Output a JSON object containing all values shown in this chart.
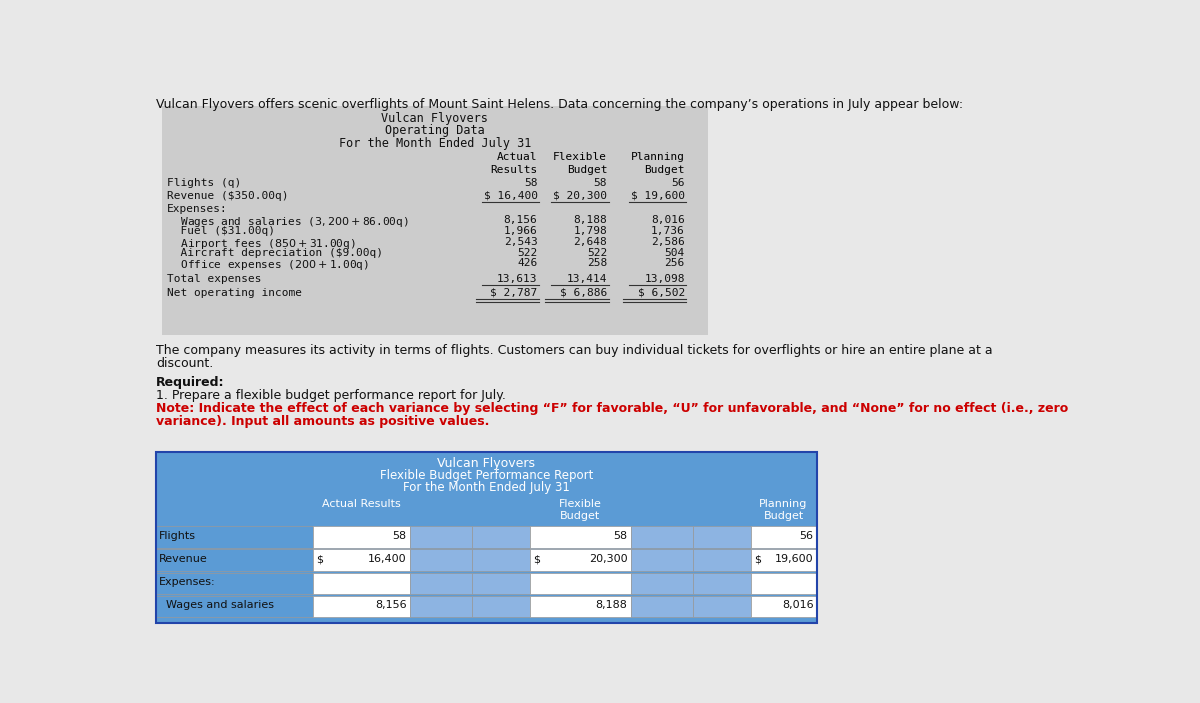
{
  "bg_color": "#e8e8e8",
  "intro_text": "Vulcan Flyovers offers scenic overflights of Mount Saint Helens. Data concerning the company’s operations in July appear below:",
  "top_table": {
    "title1": "Vulcan Flyovers",
    "title2": "Operating Data",
    "title3": "For the Month Ended July 31",
    "rows": [
      {
        "label": "Flights (q)",
        "indent": 0,
        "values": [
          "58",
          "58",
          "56"
        ],
        "double_under": false,
        "under": false
      },
      {
        "label": "Revenue ($350.00q)",
        "indent": 0,
        "values": [
          "$ 16,400",
          "$ 20,300",
          "$ 19,600"
        ],
        "double_under": false,
        "under": true
      },
      {
        "label": "Expenses:",
        "indent": 0,
        "values": [
          "",
          "",
          ""
        ],
        "double_under": false,
        "under": false
      },
      {
        "label": "  Wages and salaries ($3,200 + $86.00q)",
        "indent": 1,
        "values": [
          "8,156",
          "8,188",
          "8,016"
        ],
        "double_under": false,
        "under": false
      },
      {
        "label": "  Fuel ($31.00q)",
        "indent": 1,
        "values": [
          "1,966",
          "1,798",
          "1,736"
        ],
        "double_under": false,
        "under": false
      },
      {
        "label": "  Airport fees ($850 + $31.00q)",
        "indent": 1,
        "values": [
          "2,543",
          "2,648",
          "2,586"
        ],
        "double_under": false,
        "under": false
      },
      {
        "label": "  Aircraft depreciation ($9.00q)",
        "indent": 1,
        "values": [
          "522",
          "522",
          "504"
        ],
        "double_under": false,
        "under": false
      },
      {
        "label": "  Office expenses ($200 + $1.00q)",
        "indent": 1,
        "values": [
          "426",
          "258",
          "256"
        ],
        "double_under": false,
        "under": false
      },
      {
        "label": "Total expenses",
        "indent": 0,
        "values": [
          "13,613",
          "13,414",
          "13,098"
        ],
        "double_under": false,
        "under": true
      },
      {
        "label": "Net operating income",
        "indent": 0,
        "values": [
          "$ 2,787",
          "$ 6,886",
          "$ 6,502"
        ],
        "double_under": true,
        "under": false
      }
    ],
    "table_bg": "#cccccc"
  },
  "middle_texts": [
    {
      "text": "The company measures its activity in terms of flights. Customers can buy individual tickets for overflights or hire an entire plane at a",
      "bold": false,
      "red": false
    },
    {
      "text": "discount.",
      "bold": false,
      "red": false
    },
    {
      "text": "",
      "bold": false,
      "red": false
    },
    {
      "text": "Required:",
      "bold": true,
      "red": false
    },
    {
      "text": "1. Prepare a flexible budget performance report for July.",
      "bold": false,
      "red": false
    },
    {
      "text": "Note: Indicate the effect of each variance by selecting “F” for favorable, “U” for unfavorable, and “None” for no effect (i.e., zero",
      "bold": true,
      "red": true
    },
    {
      "text": "variance). Input all amounts as positive values.",
      "bold": true,
      "red": true
    }
  ],
  "bottom_table": {
    "title1": "Vulcan Flyovers",
    "title2": "Flexible Budget Performance Report",
    "title3": "For the Month Ended July 31",
    "header_bg": "#5b9bd5",
    "row_label_bg": "#5b9bd5",
    "data_cell_bg": "#ffffff",
    "variance_cell_bg": "#8db4e2",
    "rows": [
      {
        "label": "Flights",
        "actual": "58",
        "flex": "58",
        "plan": "56",
        "dollar": false
      },
      {
        "label": "Revenue",
        "actual": "16,400",
        "flex": "20,300",
        "plan": "19,600",
        "dollar": true
      },
      {
        "label": "Expenses:",
        "actual": "",
        "flex": "",
        "plan": "",
        "dollar": false
      },
      {
        "label": "  Wages and salaries",
        "actual": "8,156",
        "flex": "8,188",
        "plan": "8,016",
        "dollar": false
      }
    ]
  }
}
